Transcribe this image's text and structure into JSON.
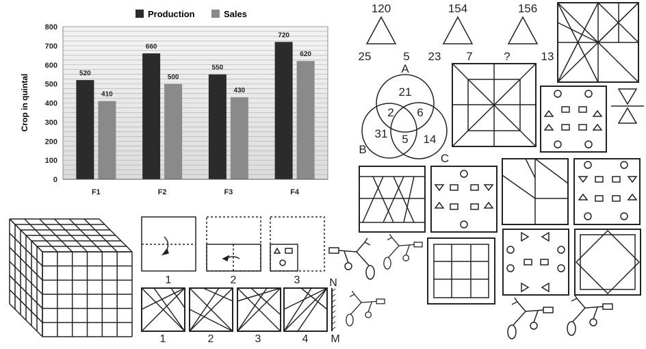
{
  "chart_data": {
    "type": "bar",
    "categories": [
      "F1",
      "F2",
      "F3",
      "F4"
    ],
    "series": [
      {
        "name": "Production",
        "values": [
          520,
          660,
          550,
          720
        ],
        "color": "#2b2b2b"
      },
      {
        "name": "Sales",
        "values": [
          410,
          500,
          430,
          620
        ],
        "color": "#8a8a8a"
      }
    ],
    "ylabel": "Crop in quintal",
    "ylim": [
      0,
      800
    ],
    "yticks": [
      0,
      100,
      200,
      300,
      400,
      500,
      600,
      700,
      800
    ],
    "grid": true,
    "legend": "top-center"
  },
  "triangles": [
    {
      "top": "120",
      "left": "25",
      "right": "5"
    },
    {
      "top": "154",
      "left": "23",
      "right": "7"
    },
    {
      "top": "156",
      "left": "?",
      "right": "13"
    }
  ],
  "venn": {
    "labels": {
      "a": "A",
      "b": "B",
      "c": "C"
    },
    "values": {
      "a_only": "21",
      "ab": "2",
      "ac": "6",
      "b_only": "31",
      "abc": "5",
      "c_only": "14"
    }
  },
  "fold_steps": [
    "1",
    "2",
    "3"
  ],
  "mirror_options": [
    "1",
    "2",
    "3",
    "4"
  ],
  "mirror_labels": {
    "top": "N",
    "bottom": "M"
  }
}
